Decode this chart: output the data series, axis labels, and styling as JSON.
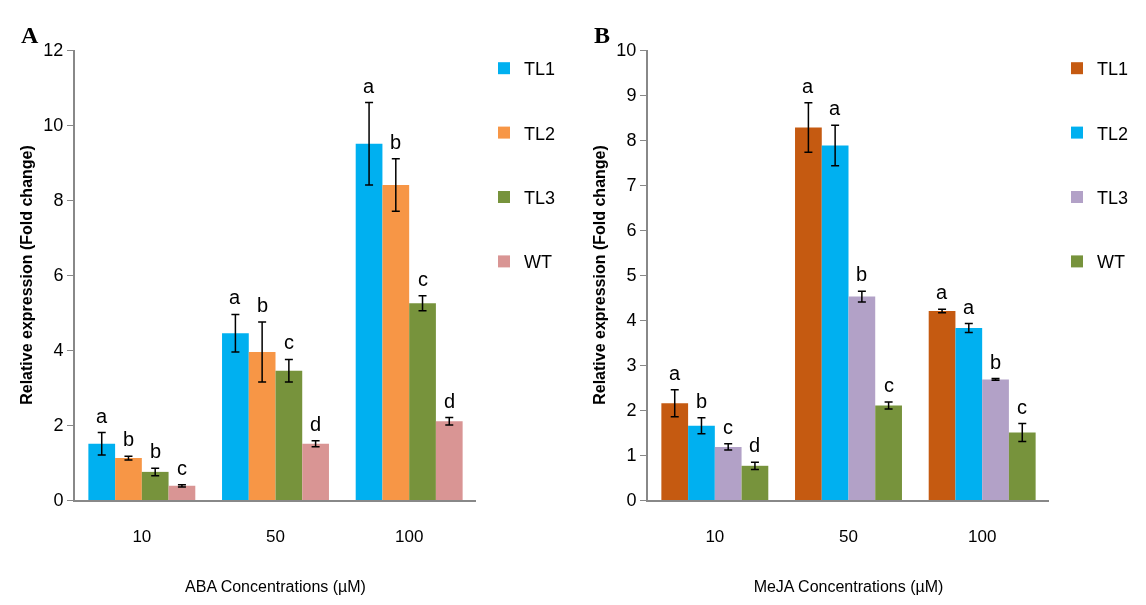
{
  "chart_data": [
    {
      "type": "bar",
      "annotations": [
        "A"
      ],
      "xlabel": "ABA Concentrations (µM)",
      "ylabel": "Relative expression (Fold change)",
      "categories": [
        "10",
        "50",
        "100"
      ],
      "ylim": [
        0,
        12
      ],
      "yticks": [
        0,
        2,
        4,
        6,
        8,
        10,
        12
      ],
      "grid": false,
      "legend": "top right",
      "series": [
        {
          "name": "TL1",
          "color": "#00b0f0",
          "values": [
            1.5,
            4.45,
            9.5
          ],
          "errors": [
            0.3,
            0.5,
            1.1
          ],
          "value_labels": [
            "a",
            "a",
            "a"
          ]
        },
        {
          "name": "TL2",
          "color": "#f79646",
          "values": [
            1.12,
            3.95,
            8.4
          ],
          "errors": [
            0.05,
            0.8,
            0.7
          ],
          "value_labels": [
            "b",
            "b",
            "b"
          ]
        },
        {
          "name": "TL3",
          "color": "#77933c",
          "values": [
            0.75,
            3.45,
            5.25
          ],
          "errors": [
            0.1,
            0.3,
            0.2
          ],
          "value_labels": [
            "b",
            "c",
            "c"
          ]
        },
        {
          "name": "WT",
          "color": "#d99594",
          "values": [
            0.38,
            1.5,
            2.1
          ],
          "errors": [
            0.03,
            0.08,
            0.1
          ],
          "value_labels": [
            "c",
            "d",
            "d"
          ]
        }
      ]
    },
    {
      "type": "bar",
      "annotations": [
        "B"
      ],
      "xlabel": "MeJA Concentrations (µM)",
      "ylabel": "Relative expression (Fold change)",
      "categories": [
        "10",
        "50",
        "100"
      ],
      "ylim": [
        0,
        10
      ],
      "yticks": [
        0,
        1,
        2,
        3,
        4,
        5,
        6,
        7,
        8,
        9,
        10
      ],
      "grid": false,
      "legend": "top right",
      "series": [
        {
          "name": "TL1",
          "color": "#c55a11",
          "values": [
            2.15,
            8.28,
            4.2
          ],
          "errors": [
            0.3,
            0.55,
            0.04
          ],
          "value_labels": [
            "a",
            "a",
            "a"
          ]
        },
        {
          "name": "TL2",
          "color": "#00b0f0",
          "values": [
            1.65,
            7.88,
            3.82
          ],
          "errors": [
            0.18,
            0.45,
            0.1
          ],
          "value_labels": [
            "b",
            "a",
            "a"
          ]
        },
        {
          "name": "TL3",
          "color": "#b2a1c7",
          "values": [
            1.18,
            4.52,
            2.68
          ],
          "errors": [
            0.07,
            0.12,
            0.02
          ],
          "value_labels": [
            "c",
            "b",
            "b"
          ]
        },
        {
          "name": "WT",
          "color": "#77933c",
          "values": [
            0.76,
            2.1,
            1.5
          ],
          "errors": [
            0.08,
            0.08,
            0.2
          ],
          "value_labels": [
            "d",
            "c",
            "c"
          ]
        }
      ]
    }
  ]
}
